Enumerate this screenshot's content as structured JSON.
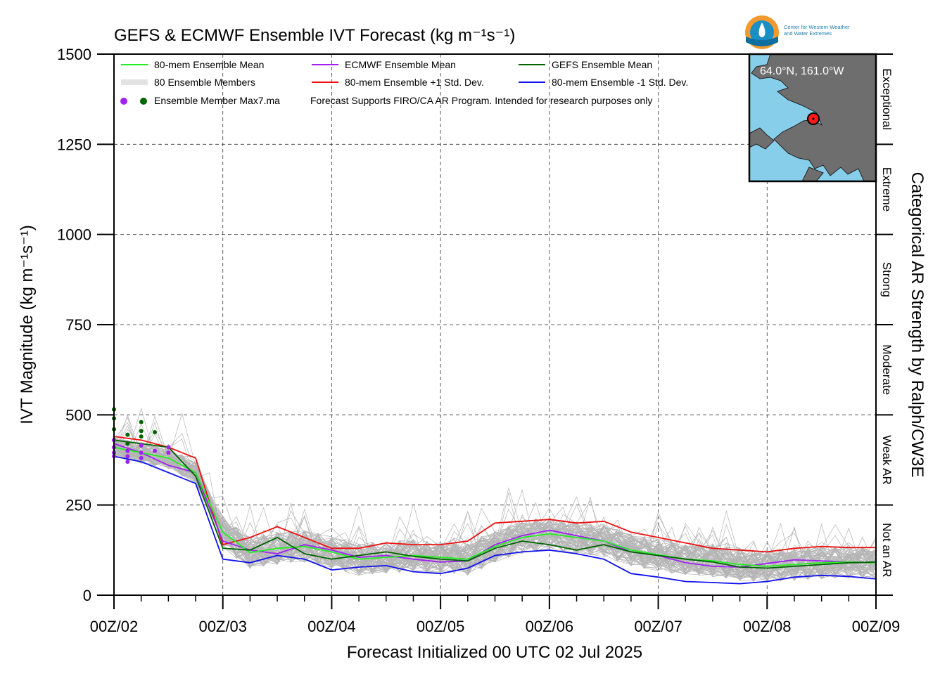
{
  "chart_data": {
    "type": "line",
    "title": "GEFS & ECMWF Ensemble IVT Forecast (kg m⁻¹s⁻¹)",
    "xlabel": "Forecast Initialized 00 UTC 02 Jul 2025",
    "ylabel": "IVT Magnitude (kg m⁻¹s⁻¹)",
    "right_label": "Categorical AR Strength by Ralph/CW3E",
    "ylim": [
      0,
      1500
    ],
    "xlim_hours": [
      0,
      168
    ],
    "x_tick_labels": [
      "00Z/02",
      "00Z/03",
      "00Z/04",
      "00Z/05",
      "00Z/06",
      "00Z/07",
      "00Z/08",
      "00Z/09"
    ],
    "y_ticks": [
      0,
      250,
      500,
      750,
      1000,
      1250,
      1500
    ],
    "grid": true,
    "categories": [
      {
        "label": "Not an AR",
        "range": [
          0,
          250
        ]
      },
      {
        "label": "Weak AR",
        "range": [
          250,
          500
        ]
      },
      {
        "label": "Moderate",
        "range": [
          500,
          750
        ]
      },
      {
        "label": "Strong",
        "range": [
          750,
          1000
        ]
      },
      {
        "label": "Extreme",
        "range": [
          1000,
          1250
        ]
      },
      {
        "label": "Exceptional",
        "range": [
          1250,
          1500
        ]
      }
    ],
    "legend": [
      {
        "label": "80-mem Ensemble Mean",
        "color": "#22ee22"
      },
      {
        "label": "ECMWF Ensemble Mean",
        "color": "#a020f0"
      },
      {
        "label": "GEFS Ensemble Mean",
        "color": "#006400"
      },
      {
        "label": "80 Ensemble Members",
        "color": "#b0b0b0"
      },
      {
        "label": "80-mem Ensemble +1 Std. Dev.",
        "color": "#ee1111"
      },
      {
        "label": "80-mem Ensemble -1 Std. Dev.",
        "color": "#1111ee"
      },
      {
        "label": "Ensemble Member Max7.ma",
        "color": "#a020f0"
      }
    ],
    "note": "Forecast Supports FIRO/CA AR Program. Intended for research purposes only",
    "inset": {
      "label": "64.0°N, 161.0°W"
    },
    "logo": {
      "text_line1": "Center for Western Weather",
      "text_line2": "and Water Extremes"
    },
    "series": [
      {
        "name": "80-mem Ensemble Mean",
        "color": "#22ee22",
        "x": [
          0,
          6,
          12,
          18,
          24,
          30,
          36,
          42,
          48,
          54,
          60,
          66,
          72,
          78,
          84,
          90,
          96,
          102,
          108,
          114,
          120,
          126,
          132,
          138,
          144,
          150,
          156,
          162,
          168
        ],
        "y": [
          410,
          395,
          380,
          340,
          175,
          118,
          130,
          135,
          120,
          100,
          105,
          110,
          105,
          100,
          135,
          160,
          170,
          160,
          150,
          125,
          112,
          100,
          95,
          85,
          80,
          85,
          90,
          92,
          90
        ]
      },
      {
        "name": "ECMWF Ensemble Mean",
        "color": "#a020f0",
        "x": [
          0,
          6,
          12,
          18,
          24,
          30,
          36,
          42,
          48,
          54,
          60,
          66,
          72,
          78,
          84,
          90,
          96,
          102,
          108,
          114,
          120,
          126,
          132,
          138,
          144,
          150,
          156,
          162,
          168
        ],
        "y": [
          420,
          395,
          360,
          340,
          150,
          125,
          115,
          140,
          125,
          105,
          110,
          100,
          92,
          95,
          140,
          165,
          180,
          165,
          150,
          120,
          110,
          90,
          80,
          78,
          88,
          98,
          95,
          92,
          90
        ]
      },
      {
        "name": "GEFS Ensemble Mean",
        "color": "#006400",
        "x": [
          0,
          6,
          12,
          18,
          24,
          30,
          36,
          42,
          48,
          54,
          60,
          66,
          72,
          78,
          84,
          90,
          96,
          102,
          108,
          114,
          120,
          126,
          132,
          138,
          144,
          150,
          156,
          162,
          168
        ],
        "y": [
          430,
          420,
          410,
          330,
          130,
          125,
          160,
          115,
          100,
          110,
          120,
          108,
          100,
          95,
          130,
          150,
          140,
          125,
          140,
          120,
          110,
          100,
          92,
          78,
          75,
          80,
          85,
          90,
          92
        ]
      },
      {
        "name": "80-mem Ensemble +1 Std. Dev.",
        "color": "#ee1111",
        "x": [
          0,
          6,
          12,
          18,
          24,
          30,
          36,
          42,
          48,
          54,
          60,
          66,
          72,
          78,
          84,
          90,
          96,
          102,
          108,
          114,
          120,
          126,
          132,
          138,
          144,
          150,
          156,
          162,
          168
        ],
        "y": [
          440,
          430,
          410,
          380,
          140,
          160,
          190,
          160,
          130,
          130,
          145,
          140,
          140,
          150,
          200,
          205,
          210,
          200,
          205,
          175,
          160,
          145,
          130,
          125,
          120,
          130,
          135,
          132,
          132
        ]
      },
      {
        "name": "80-mem Ensemble -1 Std. Dev.",
        "color": "#1111ee",
        "x": [
          0,
          6,
          12,
          18,
          24,
          30,
          36,
          42,
          48,
          54,
          60,
          66,
          72,
          78,
          84,
          90,
          96,
          102,
          108,
          114,
          120,
          126,
          132,
          138,
          144,
          150,
          156,
          162,
          168
        ],
        "y": [
          385,
          370,
          340,
          310,
          100,
          90,
          110,
          100,
          70,
          78,
          82,
          65,
          60,
          75,
          110,
          120,
          125,
          115,
          100,
          60,
          50,
          38,
          35,
          32,
          38,
          50,
          55,
          52,
          45
        ]
      }
    ],
    "max_markers": [
      {
        "name": "ECMWF",
        "color": "#a020f0",
        "points": [
          [
            0,
            430
          ],
          [
            0,
            410
          ],
          [
            0,
            395
          ],
          [
            0,
            385
          ],
          [
            3,
            420
          ],
          [
            3,
            400
          ],
          [
            3,
            385
          ],
          [
            3,
            370
          ],
          [
            6,
            415
          ],
          [
            6,
            395
          ],
          [
            6,
            380
          ],
          [
            9,
            400
          ],
          [
            12,
            410
          ],
          [
            12,
            395
          ]
        ]
      },
      {
        "name": "GEFS",
        "color": "#006400",
        "points": [
          [
            0,
            515
          ],
          [
            0,
            490
          ],
          [
            0,
            460
          ],
          [
            3,
            445
          ],
          [
            3,
            420
          ],
          [
            6,
            480
          ],
          [
            6,
            455
          ],
          [
            6,
            440
          ],
          [
            9,
            452
          ]
        ]
      }
    ]
  }
}
